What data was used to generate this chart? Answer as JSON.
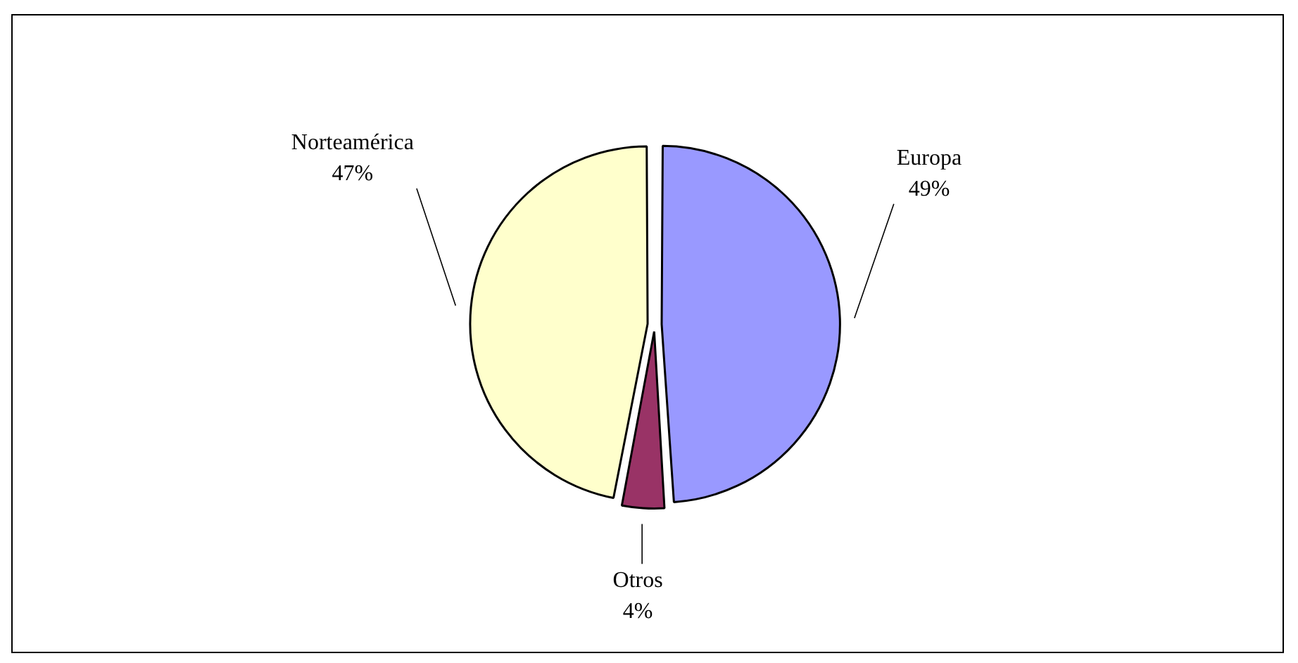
{
  "chart_data": {
    "type": "pie",
    "categories": [
      "Europa",
      "Otros",
      "Norteamérica"
    ],
    "values": [
      49,
      4,
      47
    ],
    "colors": [
      "#9999ff",
      "#993366",
      "#ffffcc"
    ],
    "value_labels": [
      "49%",
      "4%",
      "47%"
    ]
  }
}
